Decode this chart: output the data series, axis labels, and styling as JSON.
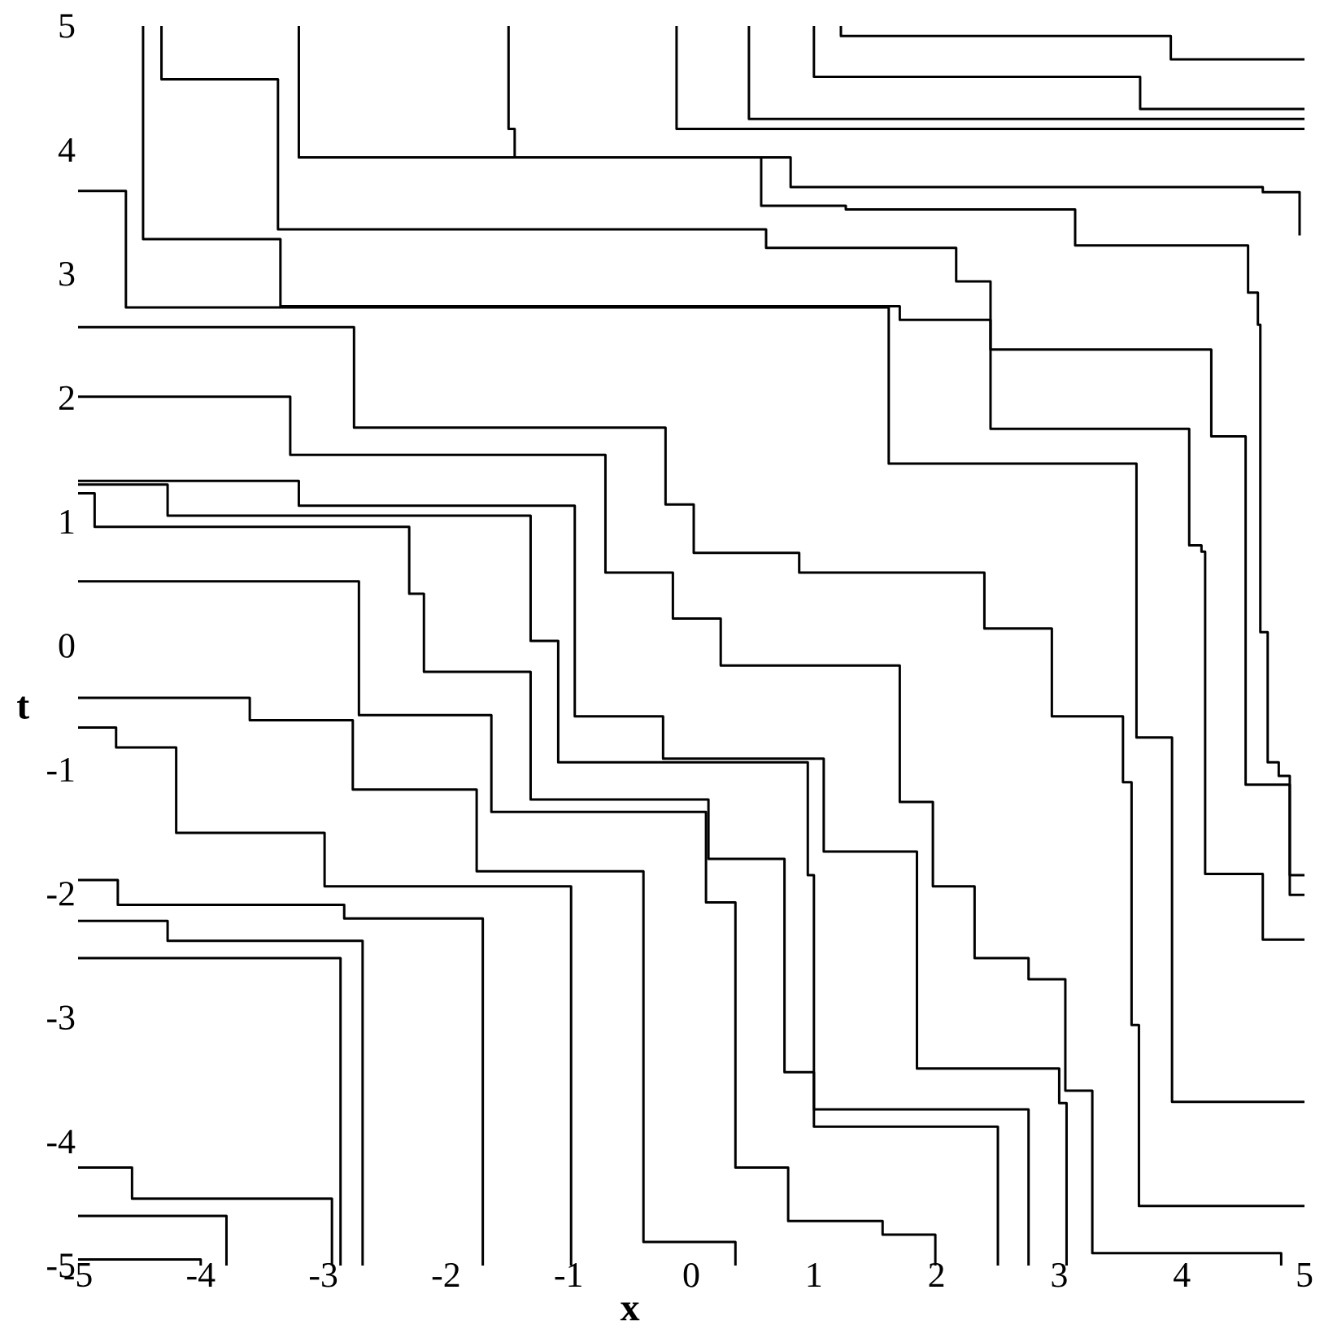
{
  "chart_data": {
    "type": "step",
    "xlabel": "x",
    "ylabel": "t",
    "xlim": [
      -5,
      5
    ],
    "ylim": [
      -5,
      5
    ],
    "xticks": [
      -5,
      -4,
      -3,
      -2,
      -1,
      0,
      1,
      2,
      3,
      4,
      5
    ],
    "yticks": [
      -5,
      -4,
      -3,
      -2,
      -1,
      0,
      1,
      2,
      3,
      4,
      5
    ],
    "series": [
      {
        "color": "#000000",
        "x": [
          1.22,
          1.22,
          3.91,
          5
        ],
        "values": [
          5,
          4.92,
          4.73,
          4.73
        ]
      },
      {
        "color": "#000000",
        "x": [
          1.0,
          1.0,
          3.66,
          5
        ],
        "values": [
          5,
          4.59,
          4.33,
          4.33
        ]
      },
      {
        "color": "#000000",
        "x": [
          0.47,
          0.47,
          5
        ],
        "values": [
          5,
          4.25,
          4.25
        ]
      },
      {
        "color": "#000000",
        "x": [
          -0.12,
          -0.12,
          5
        ],
        "values": [
          5,
          4.17,
          4.17
        ]
      },
      {
        "color": "#000000",
        "x": [
          -1.49,
          -1.49,
          -1.44,
          0.81,
          4.66,
          4.96
        ],
        "values": [
          5,
          4.17,
          3.94,
          3.7,
          3.66,
          3.31
        ]
      },
      {
        "color": "#000000",
        "x": [
          -3.2,
          -3.2,
          0.57,
          1.26,
          3.13,
          4.54,
          4.62,
          4.64,
          4.7,
          4.79,
          4.88,
          5
        ],
        "values": [
          5,
          3.94,
          3.55,
          3.52,
          3.23,
          2.85,
          2.59,
          0.11,
          -0.94,
          -1.05,
          -2.01,
          -2.01
        ]
      },
      {
        "color": "#000000",
        "x": [
          -4.32,
          -4.32,
          -3.37,
          0.61,
          2.16,
          2.44,
          4.06,
          4.16,
          4.19,
          4.66,
          5
        ],
        "values": [
          5,
          4.57,
          3.36,
          3.21,
          2.94,
          1.75,
          0.81,
          0.76,
          -1.84,
          -2.37,
          -2.37
        ]
      },
      {
        "color": "#000000",
        "x": [
          -4.47,
          -4.47,
          -3.35,
          1.7,
          2.44,
          4.24,
          4.52,
          4.88,
          5
        ],
        "values": [
          5,
          3.28,
          2.74,
          2.63,
          2.39,
          1.69,
          -1.12,
          -1.85,
          -1.85
        ]
      },
      {
        "color": "#000000",
        "x": [
          -5,
          -4.61,
          1.61,
          3.63,
          3.92,
          5
        ],
        "values": [
          3.67,
          2.73,
          1.47,
          -0.74,
          -3.68,
          -3.68
        ]
      },
      {
        "color": "#000000",
        "x": [
          -5,
          -2.75,
          -0.21,
          0.02,
          0.88,
          2.39,
          2.94,
          3.52,
          3.59,
          3.65,
          5
        ],
        "values": [
          2.57,
          1.76,
          1.14,
          0.75,
          0.59,
          0.14,
          -0.57,
          -1.1,
          -3.06,
          -4.52,
          -4.52
        ]
      },
      {
        "color": "#000000",
        "x": [
          -5,
          -3.27,
          -0.7,
          -0.15,
          0.24,
          1.7,
          1.97,
          2.31,
          2.75,
          3.05,
          3.27,
          4.81
        ],
        "values": [
          2.01,
          1.54,
          0.59,
          0.22,
          -0.16,
          -1.26,
          -1.94,
          -2.52,
          -2.69,
          -3.59,
          -4.9,
          -5
        ]
      },
      {
        "color": "#000000",
        "x": [
          -5,
          -3.2,
          -0.95,
          -0.23,
          1.08,
          1.84,
          3.0,
          3.06
        ],
        "values": [
          1.33,
          1.13,
          -0.57,
          -0.91,
          -1.66,
          -3.41,
          -3.69,
          -5
        ]
      },
      {
        "color": "#000000",
        "x": [
          -5,
          -4.27,
          -1.31,
          -1.085,
          0.95,
          1.0,
          2.75
        ],
        "values": [
          1.3,
          1.05,
          0.04,
          -0.94,
          -1.85,
          -3.74,
          -5
        ]
      },
      {
        "color": "#000000",
        "x": [
          -5,
          -4.865,
          -2.3,
          -2.18,
          -1.31,
          0.14,
          0.76,
          1.0,
          2.5
        ],
        "values": [
          1.23,
          0.96,
          0.42,
          -0.21,
          -1.24,
          -1.72,
          -3.44,
          -3.88,
          -5
        ]
      },
      {
        "color": "#000000",
        "x": [
          -5,
          -2.71,
          -1.63,
          0.12,
          0.36,
          0.79,
          1.56,
          1.99
        ],
        "values": [
          0.52,
          -0.56,
          -1.34,
          -2.07,
          -4.21,
          -4.64,
          -4.75,
          -5
        ]
      },
      {
        "color": "#000000",
        "x": [
          -5,
          -3.6,
          -2.76,
          -1.75,
          -0.39,
          0.36
        ],
        "values": [
          -0.42,
          -0.6,
          -1.16,
          -1.82,
          -4.81,
          -5
        ]
      },
      {
        "color": "#000000",
        "x": [
          -5,
          -4.69,
          -4.2,
          -2.99,
          -0.98
        ],
        "values": [
          -0.66,
          -0.82,
          -1.51,
          -1.94,
          -5
        ]
      },
      {
        "color": "#000000",
        "x": [
          -5,
          -4.676,
          -2.83,
          -1.7
        ],
        "values": [
          -1.89,
          -2.09,
          -2.2,
          -5
        ]
      },
      {
        "color": "#000000",
        "x": [
          -5,
          -4.27,
          -2.68
        ],
        "values": [
          -2.22,
          -2.38,
          -5
        ]
      },
      {
        "color": "#000000",
        "x": [
          -5,
          -2.86
        ],
        "values": [
          -2.52,
          -5
        ]
      },
      {
        "color": "#000000",
        "x": [
          -5,
          -4.56,
          -2.93
        ],
        "values": [
          -4.21,
          -4.46,
          -5
        ]
      },
      {
        "color": "#000000",
        "x": [
          -5,
          -3.79
        ],
        "values": [
          -4.6,
          -5
        ]
      },
      {
        "color": "#000000",
        "x": [
          -5,
          -4.0
        ],
        "values": [
          -4.95,
          -5
        ]
      }
    ]
  }
}
